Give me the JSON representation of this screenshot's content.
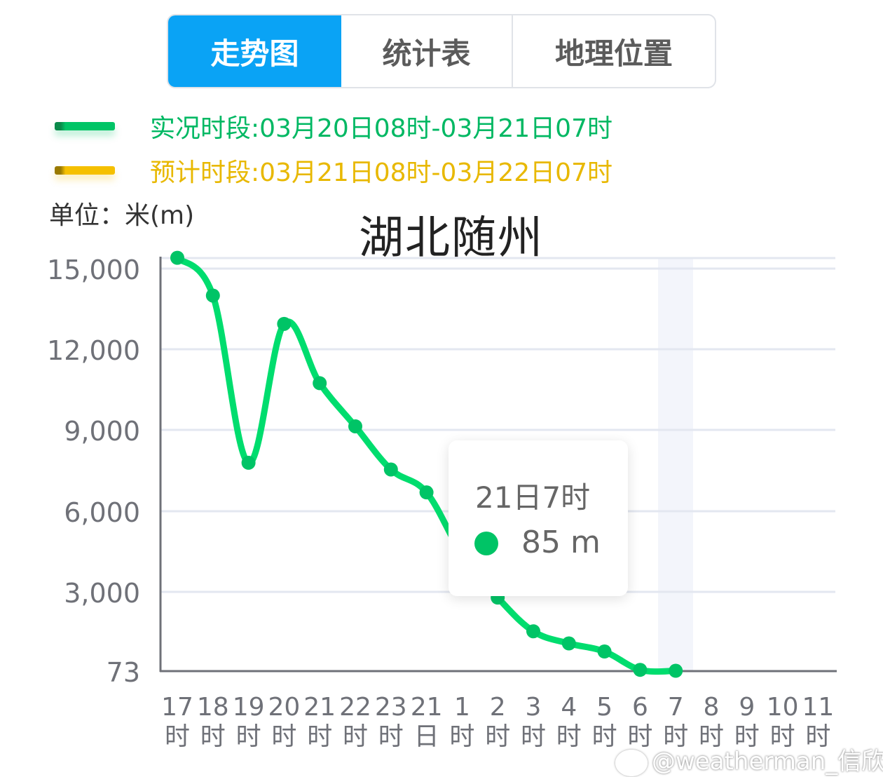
{
  "tabs": [
    {
      "label": "走势图",
      "active": true
    },
    {
      "label": "统计表",
      "active": false
    },
    {
      "label": "地理位置",
      "active": false
    }
  ],
  "legend": [
    {
      "label": "实况时段:03月20日08时-03月21日07时",
      "color": "#00c466"
    },
    {
      "label": "预计时段:03月21日08时-03月22日07时",
      "color": "#f5c000"
    }
  ],
  "unit_label": "单位：米(m)",
  "title": "湖北随州",
  "tooltip": {
    "title": "21日7时",
    "value": "85 m",
    "dot_color": "#00c466"
  },
  "watermark": "@weatherman_信欣",
  "colors": {
    "tab_active": "#0aa3f5",
    "line": "#00dd6e",
    "point": "#00c466",
    "grid": "#e3e7f0",
    "axis": "#6f7178",
    "highlight_band": "#f3f5fb"
  },
  "chart_data": {
    "type": "line",
    "title": "湖北随州",
    "xlabel": "",
    "ylabel": "单位：米(m)",
    "categories": [
      "17时",
      "18时",
      "19时",
      "20时",
      "21时",
      "22时",
      "23时",
      "21日",
      "1时",
      "2时",
      "3时",
      "4时",
      "5时",
      "6时",
      "7时",
      "8时",
      "9时",
      "10时",
      "11时"
    ],
    "series": [
      {
        "name": "实况时段:03月20日08时-03月21日07时",
        "values": [
          15400,
          14000,
          7800,
          12950,
          10750,
          9150,
          7550,
          6700,
          4400,
          2800,
          1550,
          1100,
          800,
          120,
          85,
          null,
          null,
          null,
          null
        ]
      }
    ],
    "yticks": [
      "73",
      "3,000",
      "6,000",
      "9,000",
      "12,000",
      "15,000"
    ],
    "ylim": [
      73,
      15400
    ],
    "grid": true,
    "legend_position": "top",
    "highlight_category": "7时",
    "tooltip": {
      "category": "21日7时",
      "value": 85,
      "unit": "m"
    }
  }
}
